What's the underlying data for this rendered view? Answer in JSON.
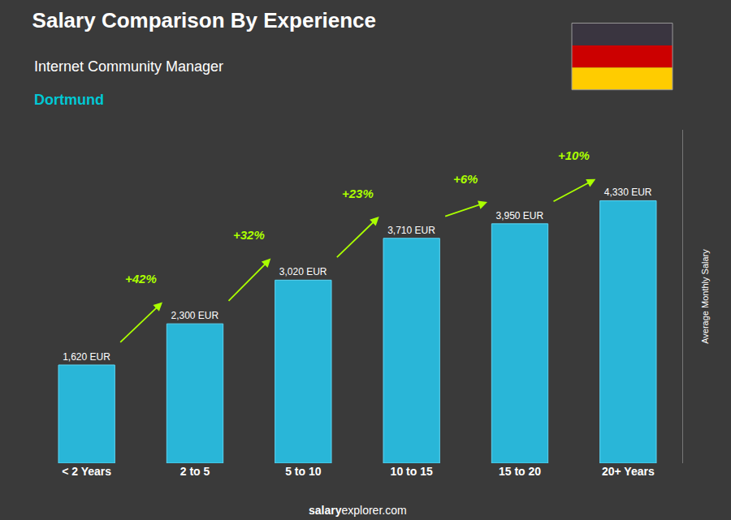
{
  "chart_data": {
    "type": "bar",
    "title": "Salary Comparison By Experience",
    "subtitle": [
      "Internet Community Manager",
      "Dortmund"
    ],
    "ylabel": "Average Monthly Salary",
    "categories": [
      "< 2 Years",
      "2 to 5",
      "5 to 10",
      "10 to 15",
      "15 to 20",
      "20+ Years"
    ],
    "values": [
      1620,
      2300,
      3020,
      3710,
      3950,
      4330
    ],
    "value_labels": [
      "1,620 EUR",
      "2,300 EUR",
      "3,020 EUR",
      "3,710 EUR",
      "3,950 EUR",
      "4,330 EUR"
    ],
    "data_labels": true,
    "color": "#29b6d8",
    "ylim": [
      0,
      5500
    ],
    "tick_labels": "x",
    "grid": false,
    "annotations": [
      {
        "text": "+42%",
        "from": "< 2 Years",
        "to": "2 to 5"
      },
      {
        "text": "+32%",
        "from": "2 to 5",
        "to": "5 to 10"
      },
      {
        "text": "+23%",
        "from": "5 to 10",
        "to": "10 to 15"
      },
      {
        "text": "+6%",
        "from": "10 to 15",
        "to": "15 to 20"
      },
      {
        "text": "+10%",
        "from": "15 to 20",
        "to": "20+ Years"
      }
    ],
    "source": [
      "salary",
      "explorer.com"
    ]
  }
}
